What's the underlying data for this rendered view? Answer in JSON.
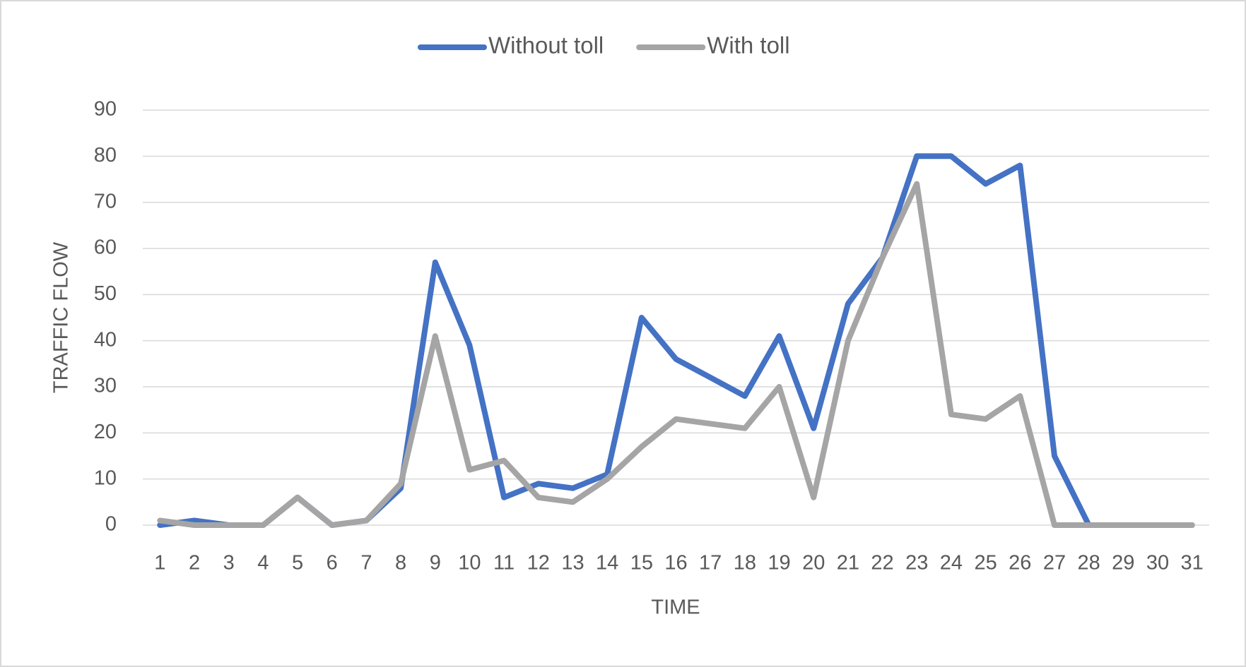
{
  "chart_data": {
    "type": "line",
    "x_label": "TIME",
    "y_label": "TRAFFIC FLOW",
    "categories": [
      "1",
      "2",
      "3",
      "4",
      "5",
      "6",
      "7",
      "8",
      "9",
      "10",
      "11",
      "12",
      "13",
      "14",
      "15",
      "16",
      "17",
      "18",
      "19",
      "20",
      "21",
      "22",
      "23",
      "24",
      "25",
      "26",
      "27",
      "28",
      "29",
      "30",
      "31"
    ],
    "series": [
      {
        "name": "Without toll",
        "color": "#4472c4",
        "values": [
          0,
          1,
          0,
          0,
          6,
          0,
          1,
          8,
          57,
          39,
          6,
          9,
          8,
          11,
          45,
          36,
          32,
          28,
          41,
          21,
          48,
          58,
          80,
          80,
          74,
          78,
          15,
          0,
          0,
          0,
          0
        ]
      },
      {
        "name": "With toll",
        "color": "#a5a5a5",
        "values": [
          1,
          0,
          0,
          0,
          6,
          0,
          1,
          9,
          41,
          12,
          14,
          6,
          5,
          10,
          17,
          23,
          22,
          21,
          30,
          6,
          40,
          58,
          74,
          24,
          23,
          28,
          0,
          0,
          0,
          0,
          0
        ]
      }
    ],
    "ylim": [
      0,
      90
    ],
    "yticks": [
      0,
      10,
      20,
      30,
      40,
      50,
      60,
      70,
      80,
      90
    ],
    "grid": true,
    "legend": "top"
  }
}
